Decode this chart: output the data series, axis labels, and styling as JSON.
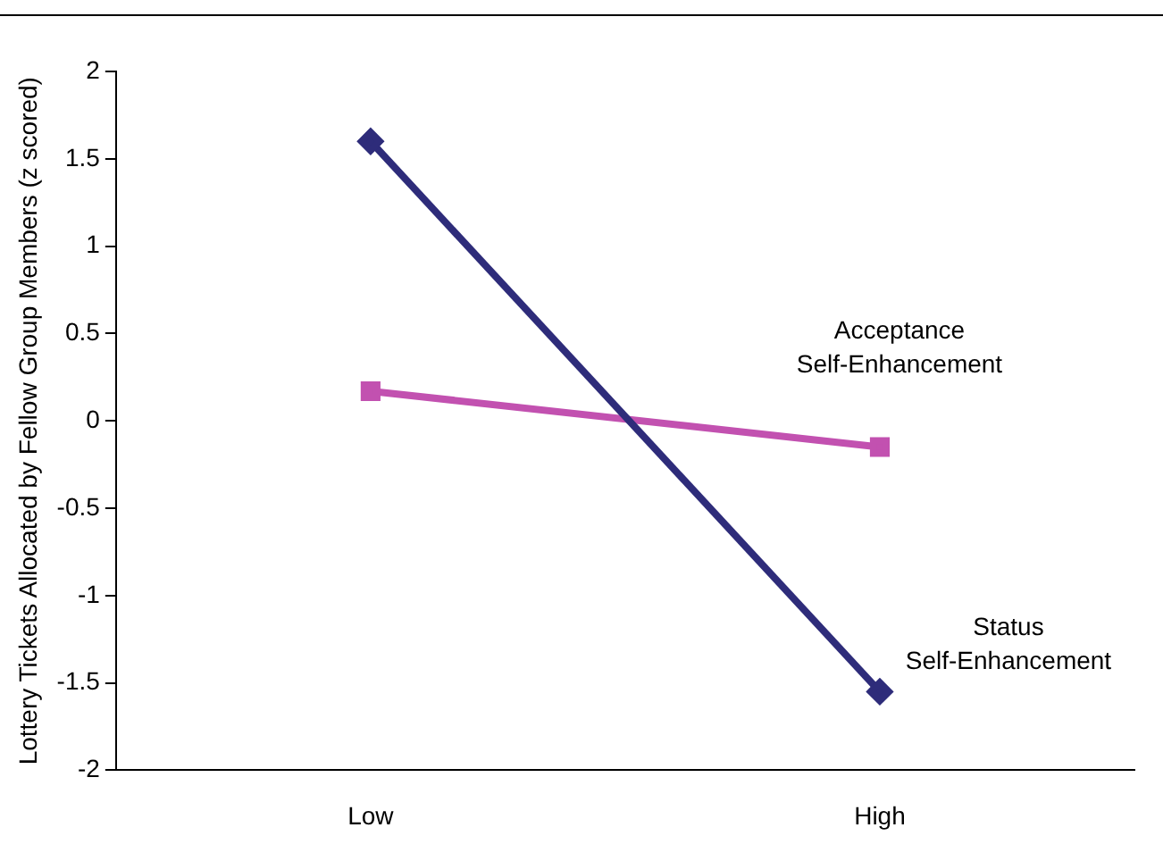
{
  "chart_data": {
    "type": "line",
    "ylabel": "Lottery Tickets Allocated by Fellow Group Members (z scored)",
    "categories": [
      "Low",
      "High"
    ],
    "series": [
      {
        "name": "Status Self-Enhancement",
        "color": "#2e2c7a",
        "marker": "diamond",
        "values": [
          1.6,
          -1.55
        ]
      },
      {
        "name": "Acceptance Self-Enhancement",
        "color": "#c251b0",
        "marker": "square",
        "values": [
          0.17,
          -0.15
        ]
      }
    ],
    "ylim": [
      -2,
      2
    ],
    "yticks": [
      -2,
      -1.5,
      -1,
      -0.5,
      0,
      0.5,
      1,
      1.5,
      2
    ],
    "grid": false,
    "legend": false,
    "line_style": "solid"
  }
}
